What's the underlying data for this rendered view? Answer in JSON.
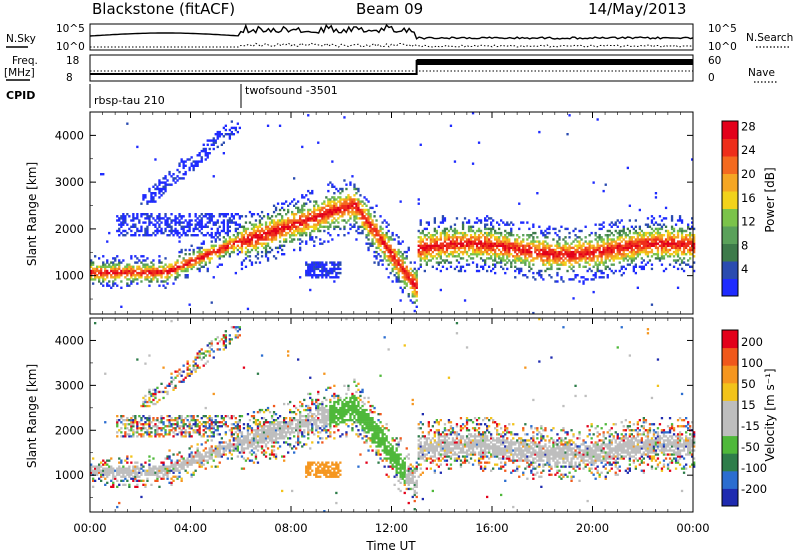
{
  "header": {
    "title": "Blackstone (fitACF)",
    "beam": "Beam 09",
    "date": "14/May/2013"
  },
  "top_panel": {
    "left_label": "N.Sky",
    "right_label": "N.Search",
    "left_ticks": [
      "10^5",
      "10^0"
    ],
    "right_ticks": [
      "10^5",
      "10^0"
    ]
  },
  "freq_panel": {
    "left_label_1": "Freq.",
    "left_label_2": "[MHz]",
    "right_label": "Nave",
    "left_ticks": [
      "18",
      "8"
    ],
    "right_ticks": [
      "60",
      "0"
    ]
  },
  "cpid": {
    "label": "CPID",
    "programs": [
      {
        "name": "rbsp-tau 210",
        "start_hour": 0
      },
      {
        "name": "twofsound -3501",
        "start_hour": 6
      }
    ]
  },
  "chart_data": [
    {
      "type": "heatmap",
      "name": "power",
      "ylabel": "Slant Range [km]",
      "yticks": [
        "1000",
        "2000",
        "3000",
        "4000"
      ],
      "ylim": [
        180,
        4500
      ],
      "xlim": [
        0,
        24
      ],
      "colorbar": {
        "label": "Power [dB]",
        "ticks": [
          "4",
          "8",
          "12",
          "16",
          "20",
          "24",
          "28"
        ],
        "colors": [
          "#1f2bff",
          "#2a4bb0",
          "#3d7a4a",
          "#5aa15a",
          "#7bc34a",
          "#f2d21a",
          "#f5a623",
          "#f46a1f",
          "#ee2e1b",
          "#e3001a"
        ]
      }
    },
    {
      "type": "heatmap",
      "name": "velocity",
      "ylabel": "Slant Range [km]",
      "yticks": [
        "1000",
        "2000",
        "3000",
        "4000"
      ],
      "ylim": [
        180,
        4500
      ],
      "xlim": [
        0,
        24
      ],
      "colorbar": {
        "label": "Velocity [m s⁻¹]",
        "ticks": [
          "200",
          "100",
          "50",
          "15",
          "-15",
          "-50",
          "-100",
          "-200"
        ],
        "colors": [
          "#1f2bb0",
          "#2b6dd0",
          "#2e7d4a",
          "#4fb83a",
          "#bebebe",
          "#bebebe",
          "#f2c31a",
          "#f5961f",
          "#f0581b",
          "#e3001a"
        ]
      }
    }
  ],
  "xaxis": {
    "label": "Time UT",
    "ticks": [
      "00:00",
      "04:00",
      "08:00",
      "12:00",
      "16:00",
      "20:00",
      "00:00"
    ]
  }
}
